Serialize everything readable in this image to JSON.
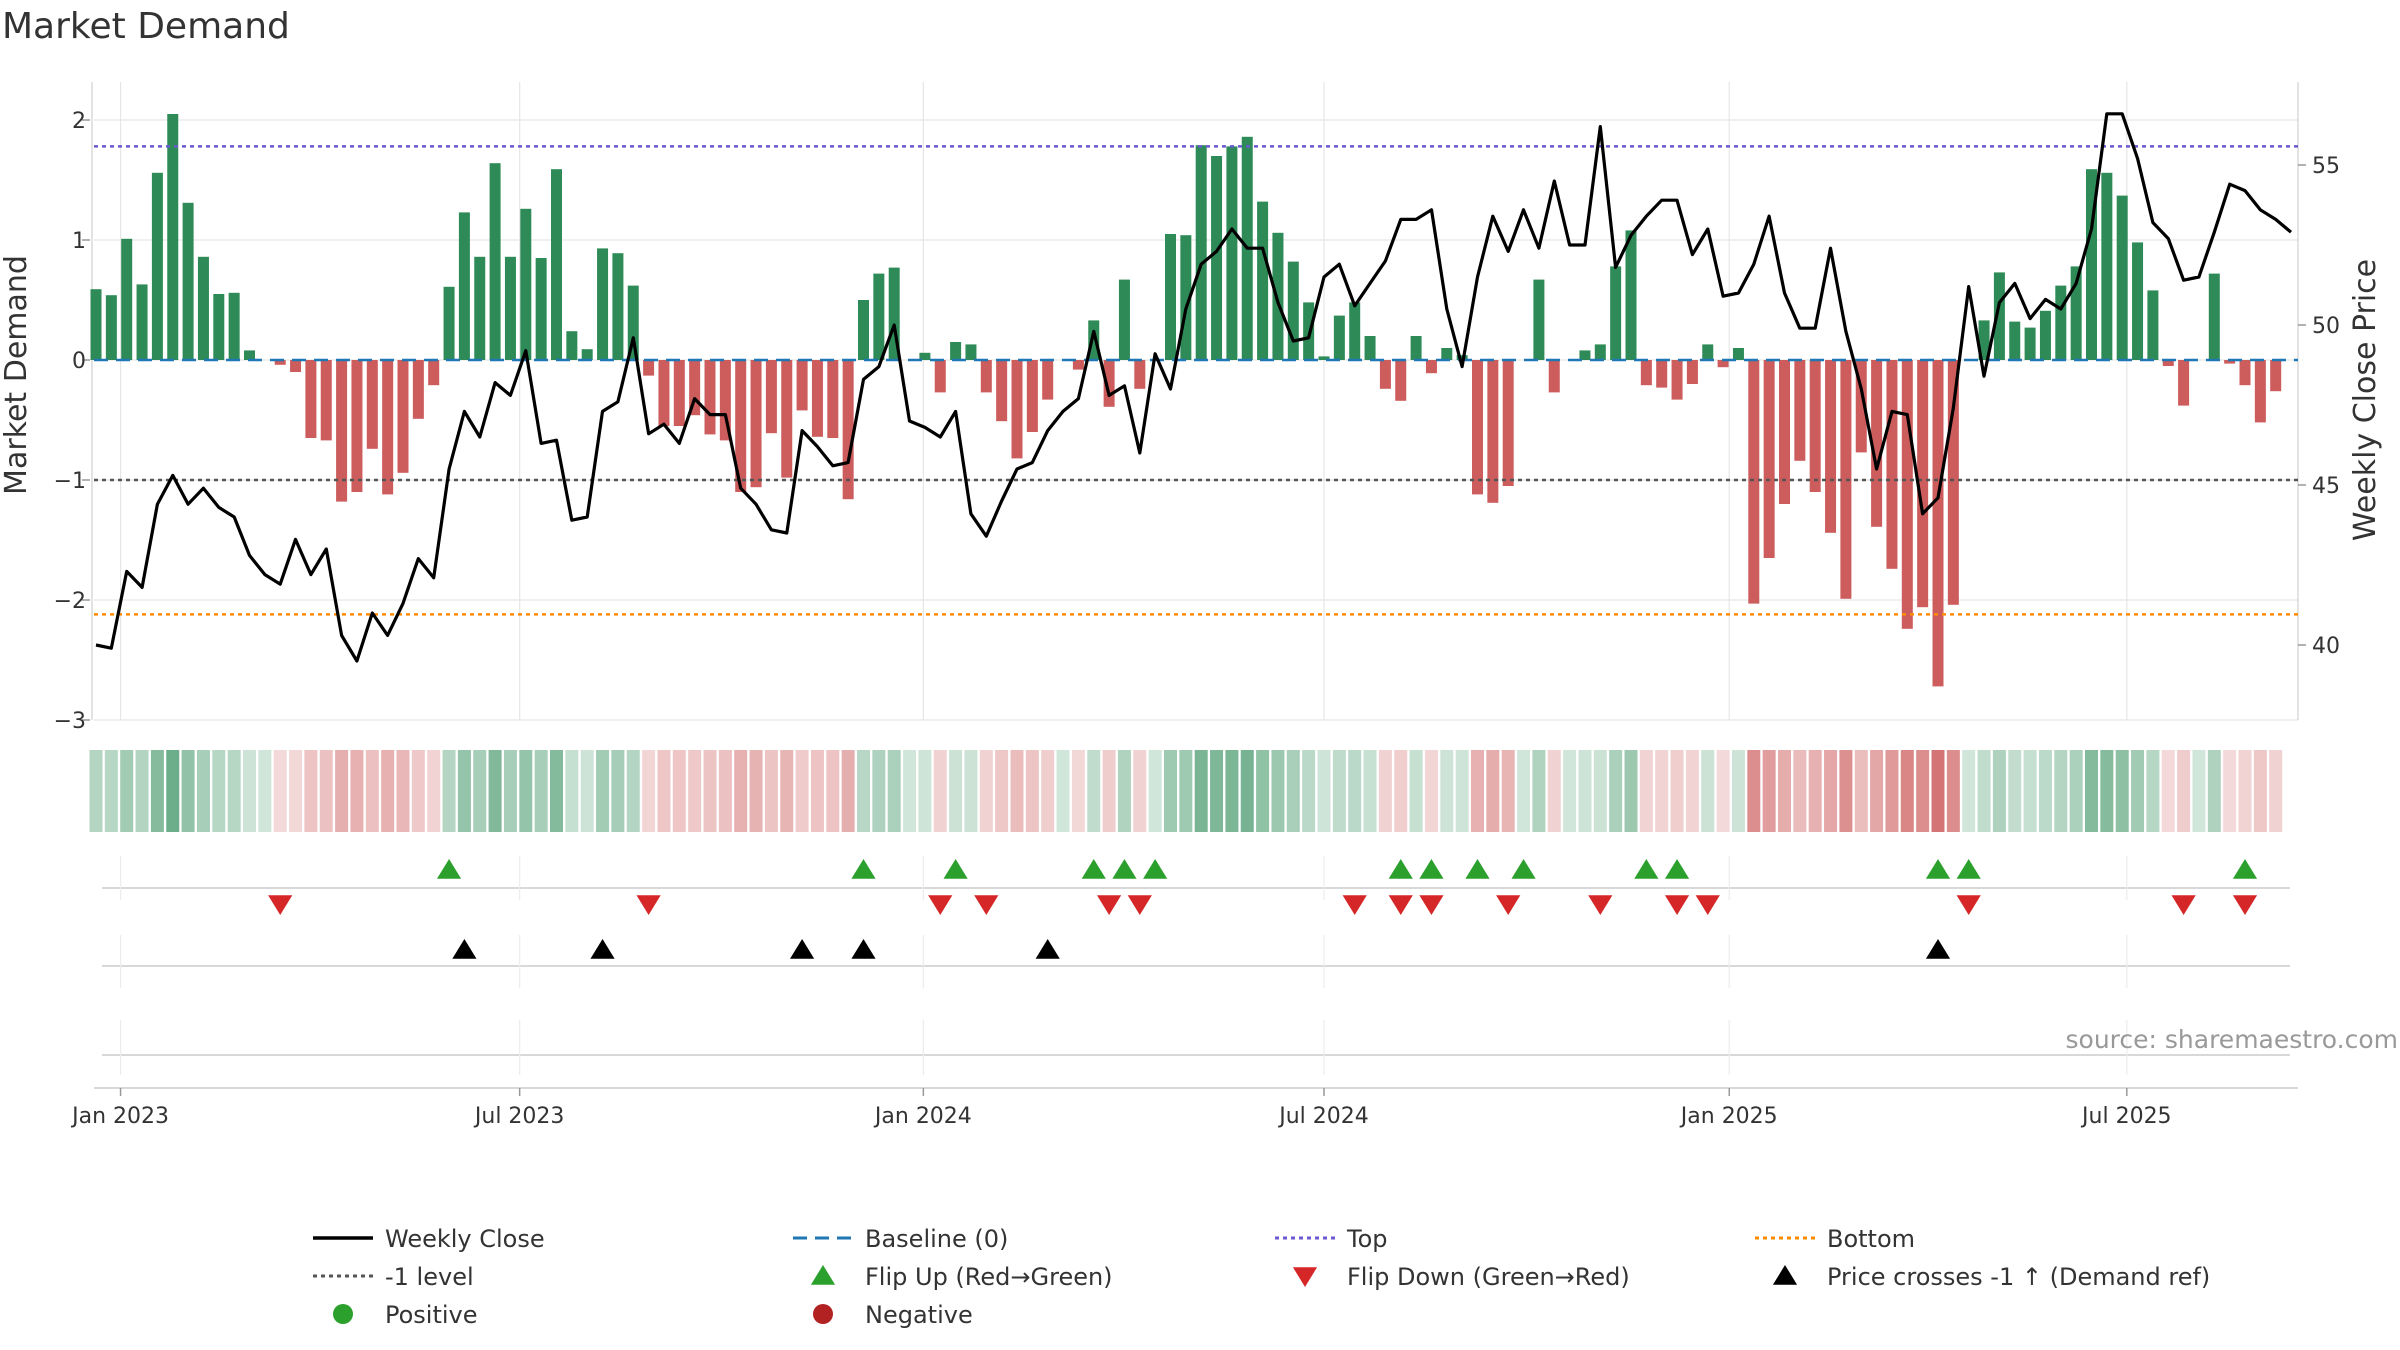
{
  "chart_data": {
    "type": "bar",
    "title": "Market Demand",
    "ylabel": "Market Demand",
    "y2label": "Weekly Close Price",
    "ylim": [
      -3,
      2.2
    ],
    "y2lim": [
      37.5,
      57.5
    ],
    "yticks": [
      -3,
      -2,
      -1,
      0,
      1,
      2
    ],
    "y2ticks": [
      40,
      45,
      50,
      55
    ],
    "yticklabels": [
      "−3",
      "−2",
      "−1",
      "0",
      "1",
      "2"
    ],
    "y2ticklabels": [
      "40",
      "45",
      "50",
      "55"
    ],
    "xticks": [
      {
        "label": "Jan 2023",
        "week": 1.6
      },
      {
        "label": "Jul 2023",
        "week": 27.6
      },
      {
        "label": "Jan 2024",
        "week": 53.9
      },
      {
        "label": "Jul 2024",
        "week": 80.0
      },
      {
        "label": "Jan 2025",
        "week": 106.4
      },
      {
        "label": "Jul 2025",
        "week": 132.3
      }
    ],
    "reference_lines": {
      "top": 1.78,
      "bottom": -2.12,
      "minus_one": -1,
      "baseline": 0
    },
    "demand": [
      0.59,
      0.54,
      1.01,
      0.63,
      1.56,
      2.05,
      1.31,
      0.86,
      0.55,
      0.56,
      0.08,
      0,
      -0.04,
      -0.1,
      -0.65,
      -0.67,
      -1.18,
      -1.1,
      -0.74,
      -1.12,
      -0.94,
      -0.49,
      -0.21,
      0.61,
      1.23,
      0.86,
      1.64,
      0.86,
      1.26,
      0.85,
      1.59,
      0.24,
      0.09,
      0.93,
      0.89,
      0.62,
      -0.13,
      -0.55,
      -0.55,
      -0.46,
      -0.62,
      -0.67,
      -1.1,
      -1.06,
      -0.61,
      -0.98,
      -0.42,
      -0.64,
      -0.65,
      -1.16,
      0.5,
      0.72,
      0.77,
      0,
      0.06,
      -0.27,
      0.15,
      0.13,
      -0.27,
      -0.51,
      -0.82,
      -0.6,
      -0.33,
      0,
      -0.08,
      0.33,
      -0.39,
      0.67,
      -0.24,
      0,
      1.05,
      1.04,
      1.79,
      1.7,
      1.78,
      1.86,
      1.32,
      1.06,
      0.82,
      0.48,
      0.03,
      0.37,
      0.48,
      0.2,
      -0.24,
      -0.34,
      0.2,
      -0.11,
      0.1,
      0.04,
      -1.12,
      -1.19,
      -1.05,
      0,
      0.67,
      -0.27,
      0,
      0.08,
      0.13,
      0.78,
      1.08,
      -0.21,
      -0.23,
      -0.33,
      -0.2,
      0.13,
      -0.06,
      0.1,
      -2.03,
      -1.65,
      -1.2,
      -0.84,
      -1.1,
      -1.44,
      -1.99,
      -0.77,
      -1.39,
      -1.74,
      -2.24,
      -2.06,
      -2.72,
      -2.04,
      0,
      0.33,
      0.73,
      0.32,
      0.27,
      0.41,
      0.62,
      0.78,
      1.59,
      1.56,
      1.37,
      0.98,
      0.58,
      -0.05,
      -0.38,
      0,
      0.72,
      -0.03,
      -0.21,
      -0.52,
      -0.26
    ],
    "weekly_close": [
      40.0,
      39.9,
      42.3,
      41.8,
      44.4,
      45.3,
      44.4,
      44.9,
      44.3,
      44.0,
      42.8,
      42.2,
      41.9,
      43.3,
      42.2,
      43.0,
      40.3,
      39.5,
      41.0,
      40.3,
      41.3,
      42.7,
      42.1,
      45.5,
      47.3,
      46.5,
      48.2,
      47.8,
      49.2,
      46.3,
      46.4,
      43.9,
      44.0,
      47.3,
      47.6,
      49.6,
      46.6,
      46.9,
      46.3,
      47.7,
      47.2,
      47.2,
      44.9,
      44.4,
      43.6,
      43.5,
      46.7,
      46.2,
      45.6,
      45.7,
      48.3,
      48.7,
      50.0,
      47.0,
      46.8,
      46.5,
      47.3,
      44.1,
      43.4,
      44.5,
      45.5,
      45.7,
      46.7,
      47.3,
      47.7,
      49.8,
      47.8,
      48.1,
      46.0,
      49.1,
      48.0,
      50.5,
      51.9,
      52.3,
      53.0,
      52.4,
      52.4,
      50.7,
      49.5,
      49.6,
      51.5,
      51.9,
      50.6,
      51.3,
      52.0,
      53.3,
      53.3,
      53.6,
      50.5,
      48.7,
      51.5,
      53.4,
      52.3,
      53.6,
      52.4,
      54.5,
      52.5,
      52.5,
      56.2,
      51.8,
      52.8,
      53.4,
      53.9,
      53.9,
      52.2,
      53.0,
      50.9,
      51.0,
      51.9,
      53.4,
      51.0,
      49.9,
      49.9,
      52.4,
      49.8,
      48.0,
      45.5,
      47.3,
      47.2,
      44.1,
      44.6,
      47.4,
      51.2,
      48.4,
      50.7,
      51.3,
      50.2,
      50.8,
      50.5,
      51.3,
      53.0,
      56.6,
      56.6,
      55.2,
      53.2,
      52.7,
      51.4,
      51.5,
      52.9,
      54.4,
      54.2,
      53.6,
      53.3,
      52.9
    ],
    "flip_up_weeks": [
      23,
      50,
      56,
      65,
      67,
      69,
      85,
      87,
      90,
      93,
      101,
      103,
      120,
      122,
      140
    ],
    "flip_down_weeks": [
      12,
      36,
      55,
      58,
      66,
      68,
      82,
      85,
      87,
      92,
      98,
      103,
      105,
      122,
      136,
      140
    ],
    "price_cross_weeks": [
      24,
      33,
      46,
      50,
      62,
      120
    ]
  },
  "legend": [
    {
      "label": "Weekly Close",
      "marker": "solid-line",
      "color": "#000000"
    },
    {
      "label": "Baseline (0)",
      "marker": "dashed-line",
      "color": "#1f77b4"
    },
    {
      "label": "Top",
      "marker": "dotted-line",
      "color": "#6a5acd"
    },
    {
      "label": "Bottom",
      "marker": "dotted-line",
      "color": "#ff8c00"
    },
    {
      "label": "-1 level",
      "marker": "dotted-line",
      "color": "#555555"
    },
    {
      "label": "Flip Up (Red→Green)",
      "marker": "triangle-up",
      "color": "#2ca02c"
    },
    {
      "label": "Flip Down (Green→Red)",
      "marker": "triangle-down",
      "color": "#d62728"
    },
    {
      "label": "Price crosses -1 ↑ (Demand ref)",
      "marker": "triangle-up",
      "color": "#000000"
    },
    {
      "label": "Positive",
      "marker": "circle",
      "color": "#2ca02c"
    },
    {
      "label": "Negative",
      "marker": "circle",
      "color": "#b22222"
    }
  ],
  "source": "source: sharemaestro.com",
  "colors": {
    "positive_bar": "#2e8b57",
    "negative_bar": "#cd5c5c",
    "price_line": "#000000",
    "grid": "#e6e6e6",
    "baseline": "#1f77b4",
    "top": "#6a5acd",
    "bottom": "#ff8c00",
    "minus_one": "#555555"
  }
}
